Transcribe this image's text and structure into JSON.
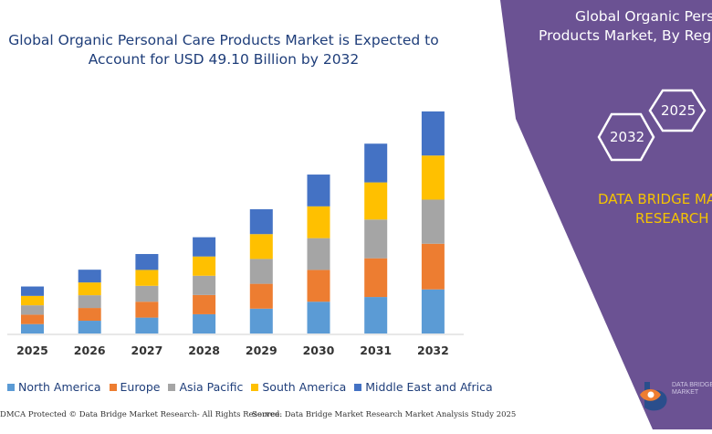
{
  "header": {
    "title_line1": "Global Organic Personal Care Products Market is Expected to",
    "title_line2": "Account for USD 49.10 Billion by 2032"
  },
  "chart_data": {
    "type": "bar",
    "stacked": true,
    "title": "Global Organic Personal Care Products Market is Expected to Account for USD 49.10 Billion by 2032",
    "categories": [
      "2025",
      "2026",
      "2027",
      "2028",
      "2029",
      "2030",
      "2031",
      "2032"
    ],
    "series": [
      {
        "name": "North America",
        "color": "#5b9bd5",
        "values": [
          4.2,
          5.7,
          7.1,
          8.6,
          11.1,
          14.2,
          16.3,
          19.7
        ]
      },
      {
        "name": "Europe",
        "color": "#ed7d31",
        "values": [
          4.2,
          5.7,
          7.1,
          8.6,
          11.1,
          14.2,
          17.3,
          20.4
        ]
      },
      {
        "name": "Asia Pacific",
        "color": "#a5a5a5",
        "values": [
          4.2,
          5.7,
          7.1,
          8.6,
          11.1,
          14.2,
          17.3,
          19.7
        ]
      },
      {
        "name": "South America",
        "color": "#ffc000",
        "values": [
          4.2,
          5.7,
          7.1,
          8.6,
          11.1,
          14.2,
          16.6,
          19.7
        ]
      },
      {
        "name": "Middle East and Africa",
        "color": "#4472c4",
        "values": [
          4.2,
          5.7,
          7.1,
          8.6,
          11.1,
          14.2,
          17.3,
          19.7
        ]
      }
    ],
    "ylim": [
      0,
      100
    ],
    "yaxis_visible": false,
    "grid": false,
    "legend_position": "bottom"
  },
  "footer": {
    "left": "DMCA Protected © Data Bridge Market Research- All Rights Reserved.",
    "right": "Source: Data Bridge Market Research Market Analysis Study 2025"
  },
  "side_panel": {
    "bg_color": "#6b5293",
    "title_line1": "Global Organic Perso",
    "title_line2": "Products Market, By Regio",
    "hex_left_year": "2032",
    "hex_right_year": "2025",
    "brand_line1": "DATA BRIDGE MA",
    "brand_line2": "RESEARCH",
    "brand_color": "#f5c400",
    "logo_line1": "DATA BRIDGE",
    "logo_line2": "MARKET"
  }
}
